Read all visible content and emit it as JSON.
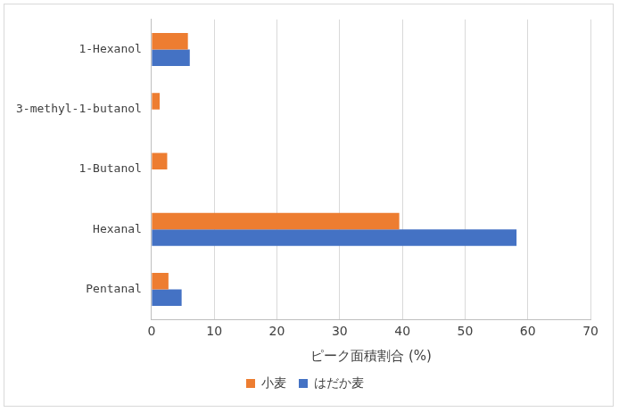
{
  "chart_data": {
    "type": "bar",
    "orientation": "horizontal",
    "x_label": "ピーク面積割合 (%)",
    "categories": [
      "1-Hexanol",
      "3-methyl-1-butanol",
      "1-Butanol",
      "Hexanal",
      "Pentanal"
    ],
    "series": [
      {
        "name": "小麦",
        "color": "#ed7d31",
        "values": [
          5.8,
          1.3,
          2.5,
          39.5,
          2.7
        ]
      },
      {
        "name": "はだか麦",
        "color": "#4472c4",
        "values": [
          6.1,
          0,
          0,
          58.2,
          4.8
        ]
      }
    ],
    "xlim": [
      0,
      70
    ],
    "xticks": [
      0,
      10,
      20,
      30,
      40,
      50,
      60,
      70
    ],
    "grid": true,
    "legend": "bottom"
  }
}
